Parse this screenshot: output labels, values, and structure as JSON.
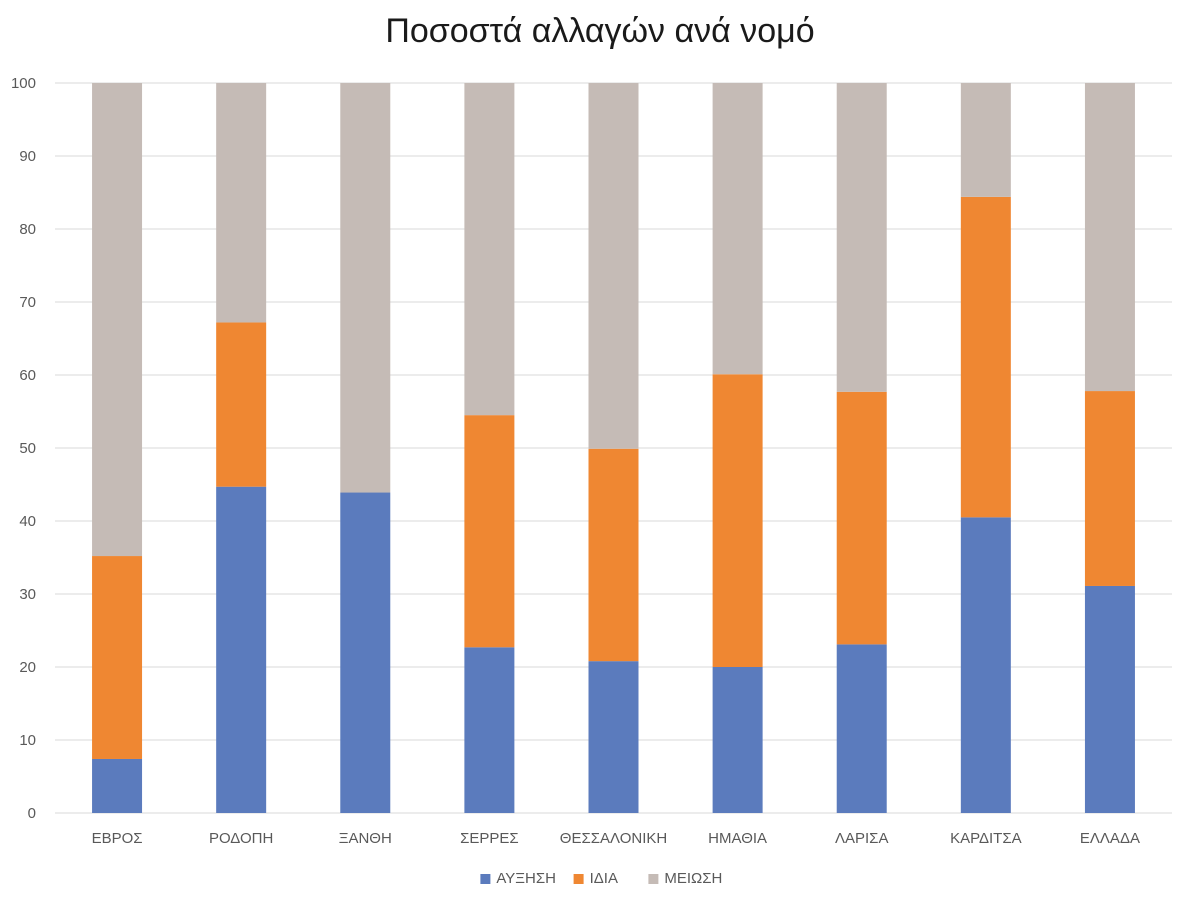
{
  "chart_data": {
    "type": "bar",
    "stacked": true,
    "title": "Ποσοστά αλλαγών ανά νομό",
    "categories": [
      "ΕΒΡΟΣ",
      "ΡΟΔΟΠΗ",
      "ΞΑΝΘΗ",
      "ΣΕΡΡΕΣ",
      "ΘΕΣΣΑΛΟΝΙΚΗ",
      "ΗΜΑΘΙΑ",
      "ΛΑΡΙΣΑ",
      "ΚΑΡΔΙΤΣΑ",
      "ΕΛΛΑΔΑ"
    ],
    "series": [
      {
        "name": "ΑΥΞΗΣΗ",
        "color": "#5b7bbd",
        "values": [
          7.4,
          44.7,
          43.9,
          22.7,
          20.8,
          20.0,
          23.1,
          40.5,
          31.1
        ]
      },
      {
        "name": "ΙΔΙΑ",
        "color": "#ef8732",
        "values": [
          27.8,
          22.5,
          0,
          31.8,
          29.1,
          40.1,
          34.6,
          43.9,
          26.7
        ]
      },
      {
        "name": "ΜΕΙΩΣΗ",
        "color": "#c5bbb6",
        "values": [
          64.8,
          32.8,
          56.1,
          45.5,
          50.1,
          39.9,
          42.3,
          15.6,
          42.2
        ]
      }
    ],
    "ylim": [
      0,
      100
    ],
    "yticks": [
      "0",
      "10",
      "20",
      "30",
      "40",
      "50",
      "60",
      "70",
      "80",
      "90",
      "100"
    ],
    "grid": true,
    "legend": "bottom",
    "gridColor": "#d9d9d9"
  }
}
